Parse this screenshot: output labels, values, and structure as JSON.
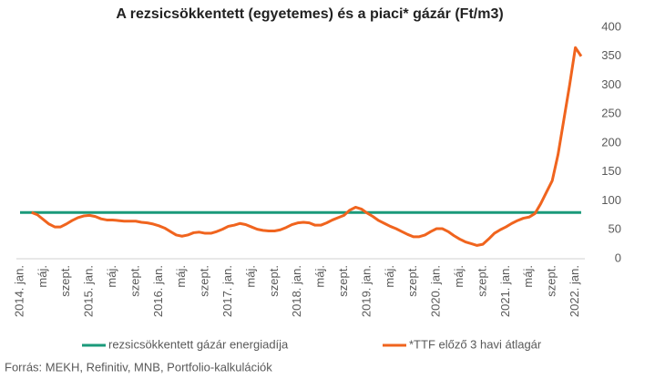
{
  "chart_data": {
    "type": "line",
    "title": "A rezsicsökkentett (egyetemes) és a piaci* gázár (Ft/m3)",
    "source": "Forrás: MEKH, Refinitiv, MNB, Portfolio-kalkulációk",
    "categories": [
      "2014. jan.",
      null,
      null,
      null,
      "máj.",
      null,
      null,
      null,
      "szept.",
      null,
      null,
      null,
      "2015. jan.",
      null,
      null,
      null,
      "máj.",
      null,
      null,
      null,
      "szept.",
      null,
      null,
      null,
      "2016. jan.",
      null,
      null,
      null,
      "máj.",
      null,
      null,
      null,
      "szept.",
      null,
      null,
      null,
      "2017. jan.",
      null,
      null,
      null,
      "máj.",
      null,
      null,
      null,
      "szept.",
      null,
      null,
      null,
      "2018. jan.",
      null,
      null,
      null,
      "máj.",
      null,
      null,
      null,
      "szept.",
      null,
      null,
      null,
      "2019. jan.",
      null,
      null,
      null,
      "máj.",
      null,
      null,
      null,
      "szept.",
      null,
      null,
      null,
      "2020. jan.",
      null,
      null,
      null,
      "máj.",
      null,
      null,
      null,
      "szept.",
      null,
      null,
      null,
      "2021. jan.",
      null,
      null,
      null,
      "máj.",
      null,
      null,
      null,
      "szept.",
      null,
      null,
      null,
      "2022. jan.",
      null
    ],
    "series": [
      {
        "name": "rezsicsökkentett gázár energiadíja",
        "color": "#1a9a7a",
        "values": [
          80,
          80,
          80,
          80,
          80,
          80,
          80,
          80,
          80,
          80,
          80,
          80,
          80,
          80,
          80,
          80,
          80,
          80,
          80,
          80,
          80,
          80,
          80,
          80,
          80,
          80,
          80,
          80,
          80,
          80,
          80,
          80,
          80,
          80,
          80,
          80,
          80,
          80,
          80,
          80,
          80,
          80,
          80,
          80,
          80,
          80,
          80,
          80,
          80,
          80,
          80,
          80,
          80,
          80,
          80,
          80,
          80,
          80,
          80,
          80,
          80,
          80,
          80,
          80,
          80,
          80,
          80,
          80,
          80,
          80,
          80,
          80,
          80,
          80,
          80,
          80,
          80,
          80,
          80,
          80,
          80,
          80,
          80,
          80,
          80,
          80,
          80,
          80,
          80,
          80,
          80,
          80,
          80,
          80,
          80,
          80,
          80,
          80
        ]
      },
      {
        "name": "*TTF előző 3 havi átlagár",
        "color": "#f0641e",
        "values": [
          null,
          null,
          80,
          76,
          68,
          60,
          55,
          55,
          60,
          66,
          71,
          74,
          75,
          73,
          69,
          67,
          67,
          66,
          65,
          65,
          65,
          63,
          62,
          60,
          57,
          53,
          47,
          41,
          39,
          41,
          45,
          46,
          44,
          44,
          47,
          51,
          56,
          58,
          61,
          59,
          55,
          51,
          49,
          48,
          48,
          50,
          54,
          59,
          62,
          63,
          62,
          58,
          58,
          62,
          67,
          71,
          75,
          84,
          89,
          86,
          79,
          73,
          66,
          61,
          56,
          52,
          47,
          42,
          38,
          38,
          41,
          47,
          52,
          52,
          47,
          40,
          34,
          29,
          26,
          23,
          25,
          34,
          44,
          50,
          55,
          61,
          66,
          70,
          72,
          78,
          95,
          115,
          135,
          180,
          240,
          300,
          365,
          350
        ]
      }
    ],
    "ylim": [
      0,
      400
    ],
    "yticks": [
      0,
      50,
      100,
      150,
      200,
      250,
      300,
      350,
      400
    ],
    "grid": false
  }
}
